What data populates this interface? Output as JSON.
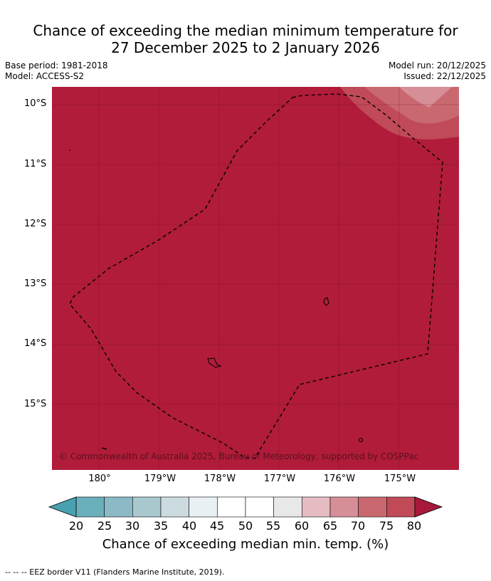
{
  "header": {
    "title_line1": "Chance of exceeding the median minimum temperature for",
    "title_line2": "27 December 2025 to 2 January 2026",
    "base_period": "Base period: 1981-2018",
    "model": "Model: ACCESS-S2",
    "model_run": "Model run: 20/12/2025",
    "issued": "Issued: 22/12/2025"
  },
  "map": {
    "latitude_labels": [
      "10°S",
      "11°S",
      "12°S",
      "13°S",
      "14°S",
      "15°S"
    ],
    "longitude_labels": [
      "180°",
      "179°W",
      "178°W",
      "177°W",
      "176°W",
      "175°W"
    ],
    "copyright": "© Commonwealth of Australia 2025, Bureau of Meteorology, supported by COSPPac",
    "dominant_category_color": "#b01c3a"
  },
  "colorbar": {
    "ticks": [
      "20",
      "25",
      "30",
      "35",
      "40",
      "45",
      "50",
      "55",
      "60",
      "65",
      "70",
      "75",
      "80"
    ],
    "colors": [
      "#6aafbc",
      "#8cb9c6",
      "#a9c8ce",
      "#cbdbe0",
      "#e9f0f3",
      "#ffffff",
      "#ffffff",
      "#e8e8e8",
      "#e4bcc2",
      "#d68e97",
      "#c9696f",
      "#c04a58"
    ],
    "under_color": "#48a1b0",
    "over_color": "#a8183a",
    "label": "Chance of exceeding median min. temp. (%)"
  },
  "footer": {
    "note": "--  --  -- EEZ border V11 (Flanders Marine Institute, 2019)."
  }
}
